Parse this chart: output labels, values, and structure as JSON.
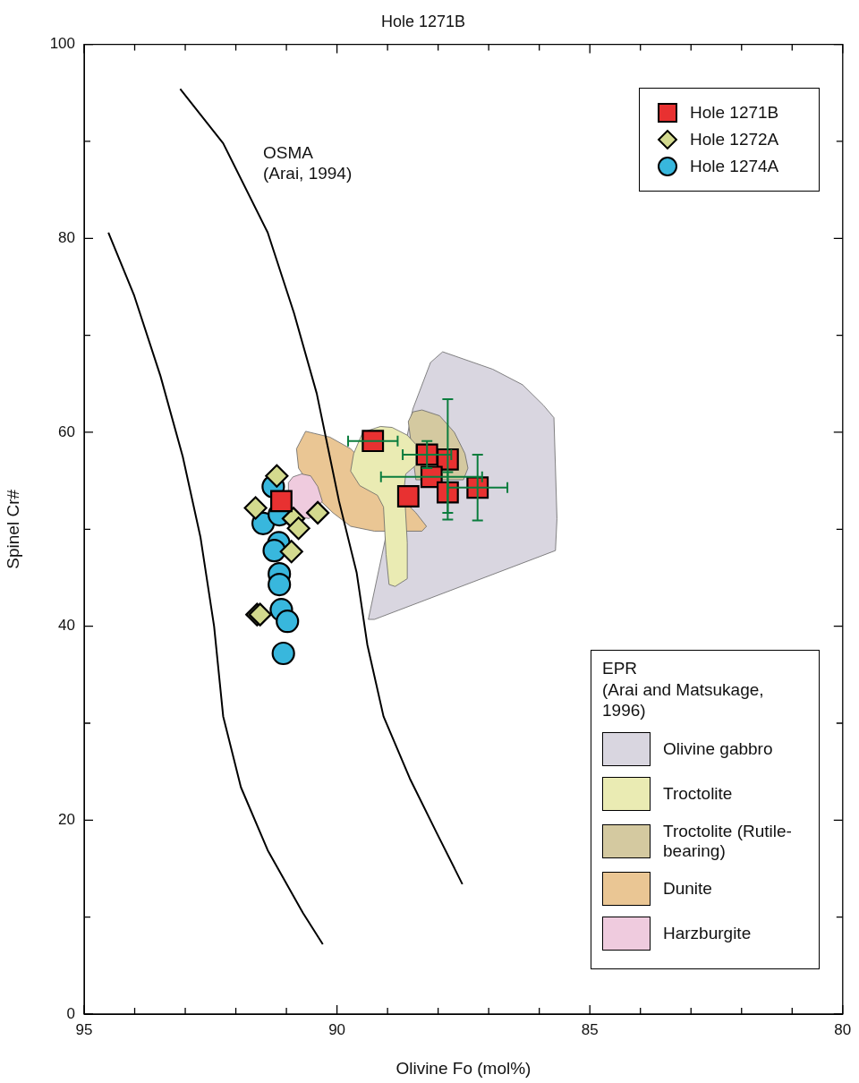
{
  "chart_data": {
    "type": "scatter",
    "title": "Hole 1271B",
    "xlabel": "Olivine Fo (mol%)",
    "ylabel": "Spinel Cr#",
    "legend_title": "EPR\n(Arai and Matsukage, 1996)",
    "legend": "top right",
    "grid": false,
    "xlim": [
      95,
      80
    ],
    "xticks": [
      95,
      {
        "value": 94,
        "label": null
      },
      {
        "value": 93,
        "label": null
      },
      {
        "value": 92,
        "label": null
      },
      {
        "value": 91,
        "label": null
      },
      90,
      {
        "value": 89,
        "label": null
      },
      {
        "value": 88,
        "label": null
      },
      {
        "value": 87,
        "label": null
      },
      {
        "value": 86,
        "label": null
      },
      85,
      {
        "value": 84,
        "label": null
      },
      {
        "value": 83,
        "label": null
      },
      {
        "value": 82,
        "label": null
      },
      {
        "value": 81,
        "label": null
      },
      80
    ],
    "ylim": [
      0,
      100
    ],
    "yticks": [
      0,
      {
        "value": 10,
        "label": null
      },
      20,
      {
        "value": 30,
        "label": null
      },
      40,
      {
        "value": 50,
        "label": null
      },
      60,
      {
        "value": 70,
        "label": null
      },
      80,
      {
        "value": 90,
        "label": null
      },
      100
    ],
    "annotations": [
      "OSMA\n(Arai, 1994)"
    ],
    "series": [
      {
        "type": "area",
        "name": "Olivine gabbro",
        "color": "#d9d6e0",
        "x": [
          87.91,
          88.15,
          88.5,
          89.38,
          89.26,
          85.68,
          85.65,
          85.71,
          85.92,
          86.33,
          86.92
        ],
        "values": [
          68.3,
          67.2,
          62.4,
          40.7,
          40.7,
          47.8,
          51.1,
          61.5,
          62.8,
          64.9,
          66.5
        ]
      },
      {
        "type": "area",
        "name": "Troctolite (Rutile-bearing)",
        "color": "#d4c9a0",
        "x": [
          88.5,
          88.32,
          87.97,
          87.68,
          87.47,
          87.41,
          87.5,
          88.44,
          88.59
        ],
        "values": [
          62.1,
          62.3,
          61.7,
          60.0,
          57.8,
          56.3,
          55.1,
          55.1,
          61.1
        ]
      },
      {
        "type": "area",
        "name": "Dunite",
        "color": "#eac694",
        "x": [
          90.62,
          90.14,
          89.73,
          88.44,
          88.23,
          88.32,
          89.26,
          89.73,
          90.08,
          90.32,
          90.76,
          90.8
        ],
        "values": [
          60.1,
          59.5,
          58.3,
          51.7,
          50.3,
          49.8,
          49.8,
          50.3,
          51.7,
          52.9,
          56.3,
          58.3
        ]
      },
      {
        "type": "area",
        "name": "Troctolite",
        "color": "#eaebb3",
        "x": [
          89.14,
          88.91,
          88.61,
          88.44,
          88.44,
          88.64,
          88.67,
          88.61,
          88.61,
          88.85,
          88.97,
          89.03,
          89.08,
          89.2,
          89.55,
          89.73,
          89.67,
          89.49
        ],
        "values": [
          60.6,
          60.5,
          59.7,
          58.75,
          56.6,
          55.7,
          54.3,
          48.6,
          44.9,
          44.1,
          44.3,
          47.4,
          52.3,
          53.5,
          54.5,
          56.0,
          57.8,
          60.0
        ]
      },
      {
        "type": "area",
        "name": "Harzburgite",
        "color": "#efcbde",
        "x": [
          90.7,
          90.52,
          90.38,
          90.29,
          90.55,
          90.96,
          90.96,
          90.87
        ],
        "values": [
          55.7,
          55.5,
          54.4,
          52.9,
          51.1,
          51.5,
          54.8,
          55.4
        ]
      },
      {
        "type": "line",
        "color": "#000000",
        "x": [
          94.52,
          94.01,
          93.49,
          93.05,
          92.7,
          92.43,
          92.25,
          91.9,
          91.37,
          90.67,
          90.28
        ],
        "values": [
          80.6,
          74.1,
          65.8,
          57.5,
          49.2,
          40.0,
          30.7,
          23.4,
          16.9,
          10.4,
          7.2
        ]
      },
      {
        "type": "line",
        "color": "#000000",
        "x": [
          93.1,
          92.25,
          91.37,
          90.85,
          90.4,
          89.96,
          89.61,
          89.4,
          89.08,
          88.56,
          88.03,
          87.52
        ],
        "values": [
          95.4,
          89.8,
          80.6,
          72.3,
          64.0,
          52.9,
          45.5,
          38.1,
          30.7,
          24.3,
          18.7,
          13.4
        ]
      },
      {
        "name": "Hole 1274A",
        "color": "#38b7dd",
        "marker": "circle",
        "x": [
          91.26,
          91.46,
          91.14,
          91.15,
          91.24,
          91.14,
          91.14,
          91.1,
          90.98,
          91.06
        ],
        "values": [
          54.4,
          50.6,
          51.5,
          48.6,
          47.8,
          45.4,
          44.3,
          41.7,
          40.5,
          37.2
        ]
      },
      {
        "name": "Hole 1272A",
        "color": "#d3da8e",
        "marker": "diamond",
        "x": [
          91.19,
          91.61,
          90.86,
          90.76,
          90.38,
          90.9,
          91.58,
          91.52
        ],
        "values": [
          55.5,
          52.2,
          51.1,
          50.1,
          51.7,
          47.7,
          41.2,
          41.2
        ]
      },
      {
        "name": "Hole 1271B",
        "color": "#e83131",
        "marker": "square",
        "x": [
          89.29,
          88.22,
          87.81,
          88.13,
          88.59,
          87.81,
          87.22,
          91.1
        ],
        "values": [
          59.1,
          57.7,
          57.2,
          55.4,
          53.4,
          53.8,
          54.3,
          52.9
        ],
        "errors": [
          null,
          1.4,
          6.2,
          null,
          null,
          2.1,
          3.4,
          null
        ],
        "xerrors": [
          0.49,
          0.48,
          null,
          1.0,
          null,
          null,
          0.59,
          null
        ]
      }
    ]
  }
}
